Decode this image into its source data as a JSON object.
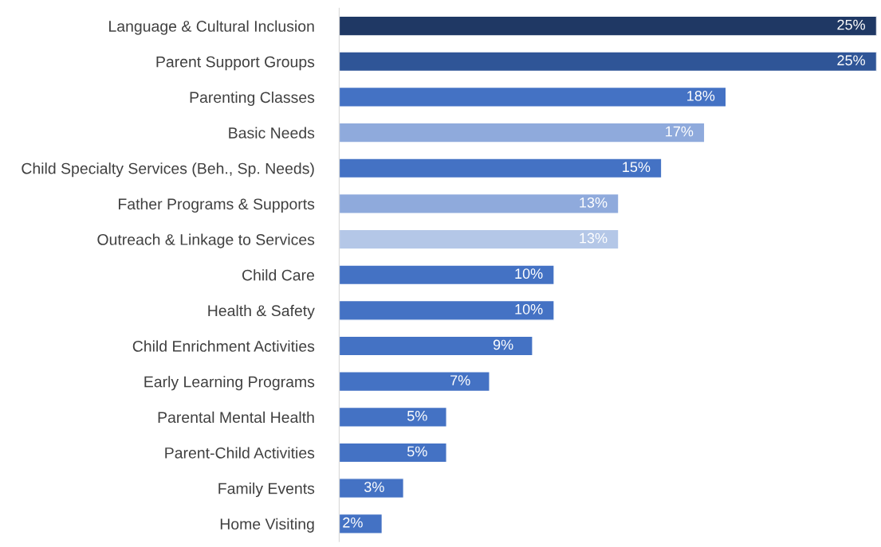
{
  "chart_data": {
    "type": "bar",
    "orientation": "horizontal",
    "categories": [
      "Language & Cultural Inclusion",
      "Parent Support Groups",
      "Parenting Classes",
      "Basic Needs",
      "Child Specialty Services (Beh., Sp. Needs)",
      "Father Programs & Supports",
      "Outreach & Linkage to Services",
      "Child Care",
      "Health & Safety",
      "Child Enrichment Activities",
      "Early Learning Programs",
      "Parental Mental Health",
      "Parent-Child Activities",
      "Family Events",
      "Home Visiting"
    ],
    "values": [
      25,
      25,
      18,
      17,
      15,
      13,
      13,
      10,
      10,
      9,
      7,
      5,
      5,
      3,
      2
    ],
    "value_labels": [
      "25%",
      "25%",
      "18%",
      "17%",
      "15%",
      "13%",
      "13%",
      "10%",
      "10%",
      "9%",
      "7%",
      "5%",
      "5%",
      "3%",
      "2%"
    ],
    "colors": [
      "#1f3864",
      "#2f5597",
      "#4472c4",
      "#8faadc",
      "#4472c4",
      "#8faadc",
      "#b4c7e7",
      "#4472c4",
      "#4472c4",
      "#4472c4",
      "#4472c4",
      "#4472c4",
      "#4472c4",
      "#4472c4",
      "#4472c4"
    ],
    "xlim": [
      0,
      25
    ],
    "tick_labels": "y",
    "grid": false,
    "legend": false
  }
}
